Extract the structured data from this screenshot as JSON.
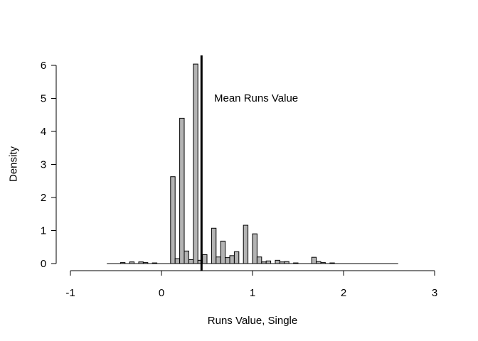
{
  "chart_data": {
    "type": "bar",
    "subtype": "histogram",
    "title": "",
    "xlabel": "Runs Value, Single",
    "ylabel": "Density",
    "xlim": [
      -1,
      3
    ],
    "ylim": [
      0,
      6
    ],
    "x_ticks": [
      "-1",
      "0",
      "1",
      "2",
      "3"
    ],
    "y_ticks": [
      "0",
      "1",
      "2",
      "3",
      "4",
      "5",
      "6"
    ],
    "bin_width": 0.05,
    "bin_start": -0.6,
    "bin_end": 2.6,
    "bar_color": "#b3b3b3",
    "bins": [
      {
        "x": -0.45,
        "value": 0.03
      },
      {
        "x": -0.35,
        "value": 0.05
      },
      {
        "x": -0.25,
        "value": 0.05
      },
      {
        "x": -0.2,
        "value": 0.03
      },
      {
        "x": -0.1,
        "value": 0.02
      },
      {
        "x": 0.1,
        "value": 2.63
      },
      {
        "x": 0.15,
        "value": 0.15
      },
      {
        "x": 0.2,
        "value": 4.4
      },
      {
        "x": 0.25,
        "value": 0.38
      },
      {
        "x": 0.3,
        "value": 0.12
      },
      {
        "x": 0.35,
        "value": 6.04
      },
      {
        "x": 0.4,
        "value": 0.1
      },
      {
        "x": 0.45,
        "value": 0.27
      },
      {
        "x": 0.55,
        "value": 1.07
      },
      {
        "x": 0.6,
        "value": 0.2
      },
      {
        "x": 0.65,
        "value": 0.68
      },
      {
        "x": 0.7,
        "value": 0.18
      },
      {
        "x": 0.75,
        "value": 0.24
      },
      {
        "x": 0.8,
        "value": 0.36
      },
      {
        "x": 0.9,
        "value": 1.16
      },
      {
        "x": 1.0,
        "value": 0.9
      },
      {
        "x": 1.05,
        "value": 0.2
      },
      {
        "x": 1.1,
        "value": 0.05
      },
      {
        "x": 1.15,
        "value": 0.08
      },
      {
        "x": 1.25,
        "value": 0.1
      },
      {
        "x": 1.3,
        "value": 0.05
      },
      {
        "x": 1.35,
        "value": 0.06
      },
      {
        "x": 1.45,
        "value": 0.02
      },
      {
        "x": 1.65,
        "value": 0.19
      },
      {
        "x": 1.7,
        "value": 0.06
      },
      {
        "x": 1.75,
        "value": 0.03
      },
      {
        "x": 1.85,
        "value": 0.02
      }
    ],
    "mean_line": {
      "x": 0.44,
      "label": "Mean Runs Value"
    }
  }
}
